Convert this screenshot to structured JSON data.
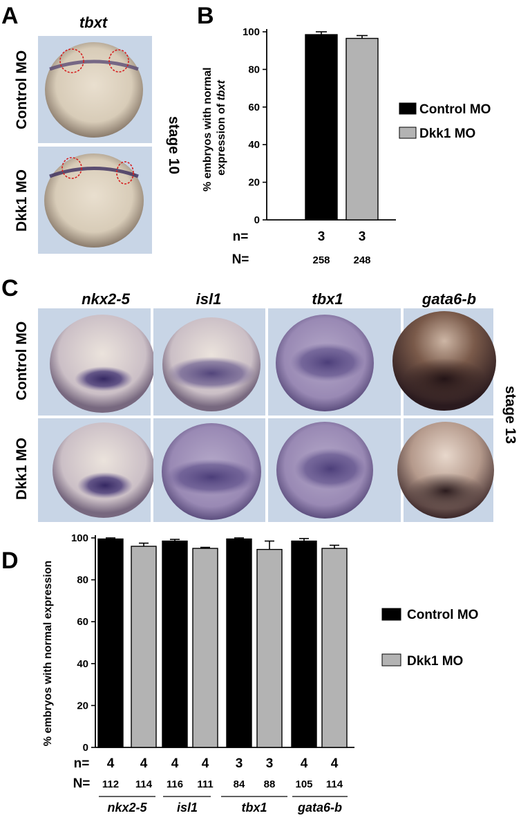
{
  "panel_a": {
    "letter": "A",
    "gene": "tbxt",
    "rows": [
      "Control MO",
      "Dkk1 MO"
    ],
    "stage": "stage 10"
  },
  "panel_b": {
    "letter": "B",
    "n_label": "n=",
    "N_label": "N=",
    "n_values": [
      "3",
      "3"
    ],
    "N_values": [
      "258",
      "248"
    ],
    "legend": [
      "Control MO",
      "Dkk1 MO"
    ]
  },
  "panel_c": {
    "letter": "C",
    "genes": [
      "nkx2-5",
      "isl1",
      "tbx1",
      "gata6-b"
    ],
    "rows": [
      "Control MO",
      "Dkk1 MO"
    ],
    "stage": "stage 13"
  },
  "panel_d": {
    "letter": "D",
    "n_label": "n=",
    "N_label": "N=",
    "n_values": [
      "4",
      "4",
      "4",
      "4",
      "3",
      "3",
      "4",
      "4"
    ],
    "N_values": [
      "112",
      "114",
      "116",
      "111",
      "84",
      "88",
      "105",
      "114"
    ],
    "group_labels": [
      "nkx2-5",
      "isl1",
      "tbx1",
      "gata6-b"
    ],
    "legend": [
      "Control MO",
      "Dkk1 MO"
    ]
  },
  "colors": {
    "control": "#000000",
    "dkk1": "#b3b3b3",
    "photo_background": "#c8d5e6",
    "stain": "#4b3a7a",
    "outline_marker": "#d62020"
  },
  "chart_data": [
    {
      "type": "bar",
      "panel": "B",
      "categories": [
        "Control MO",
        "Dkk1 MO"
      ],
      "values": [
        98.5,
        96.5
      ],
      "errors": [
        1.5,
        1.5
      ],
      "ylabel_prefix": "% embryos with normal",
      "ylabel_suffix": "expression of ",
      "ylabel_gene": "tbxt",
      "ylim": [
        0,
        100
      ],
      "yticks": [
        0,
        20,
        40,
        60,
        80,
        100
      ],
      "legend_position": "right"
    },
    {
      "type": "bar",
      "panel": "D",
      "categories": [
        "nkx2-5",
        "isl1",
        "tbx1",
        "gata6-b"
      ],
      "series": [
        {
          "name": "Control MO",
          "values": [
            99.5,
            98.5,
            99.5,
            98.5
          ],
          "errors": [
            0.5,
            0.8,
            0.5,
            1.2
          ]
        },
        {
          "name": "Dkk1 MO",
          "values": [
            96.0,
            95.0,
            94.5,
            95.0
          ],
          "errors": [
            1.5,
            0.5,
            4.0,
            1.5
          ]
        }
      ],
      "ylabel": "% embryos with normal expression",
      "ylim": [
        0,
        100
      ],
      "yticks": [
        0,
        20,
        40,
        60,
        80,
        100
      ],
      "legend_position": "right"
    }
  ]
}
